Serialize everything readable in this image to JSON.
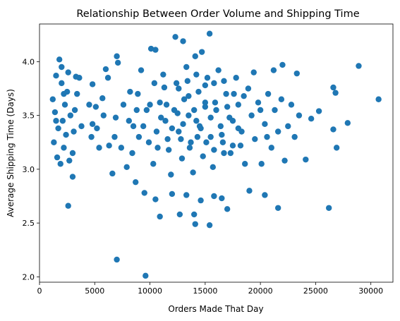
{
  "chart_data": {
    "type": "scatter",
    "title": "Relationship Between Order Volume and Shipping Time",
    "xlabel": "Orders Made That Day",
    "ylabel": "Average Shipping Time (Days)",
    "xlim": [
      0,
      32000
    ],
    "ylim": [
      1.95,
      4.35
    ],
    "x_ticks": [
      0,
      5000,
      10000,
      15000,
      20000,
      25000,
      30000
    ],
    "y_ticks": [
      2.0,
      2.5,
      3.0,
      3.5,
      4.0
    ],
    "grid": false,
    "legend": "none",
    "marker_color": "#1f77b4",
    "points": [
      [
        9600,
        2.01
      ],
      [
        7000,
        2.16
      ],
      [
        2600,
        2.66
      ],
      [
        21600,
        2.64
      ],
      [
        26200,
        2.64
      ],
      [
        10900,
        2.56
      ],
      [
        12700,
        2.58
      ],
      [
        14000,
        2.58
      ],
      [
        14100,
        2.49
      ],
      [
        15400,
        2.48
      ],
      [
        12000,
        2.77
      ],
      [
        13300,
        2.76
      ],
      [
        15800,
        2.75
      ],
      [
        16500,
        2.73
      ],
      [
        17000,
        2.63
      ],
      [
        9500,
        2.78
      ],
      [
        10500,
        2.72
      ],
      [
        14600,
        2.71
      ],
      [
        19000,
        2.8
      ],
      [
        20400,
        2.76
      ],
      [
        24100,
        3.09
      ],
      [
        26600,
        3.37
      ],
      [
        26900,
        3.2
      ],
      [
        27900,
        3.43
      ],
      [
        28900,
        3.96
      ],
      [
        30700,
        3.65
      ],
      [
        26600,
        3.76
      ],
      [
        26800,
        3.71
      ],
      [
        25300,
        3.54
      ],
      [
        24600,
        3.47
      ],
      [
        23300,
        3.89
      ],
      [
        22000,
        3.97
      ],
      [
        21200,
        3.92
      ],
      [
        12300,
        4.23
      ],
      [
        13000,
        4.19
      ],
      [
        15400,
        4.26
      ],
      [
        10100,
        4.12
      ],
      [
        10500,
        4.11
      ],
      [
        14700,
        4.09
      ],
      [
        14100,
        4.05
      ],
      [
        7000,
        4.05
      ],
      [
        7100,
        3.99
      ],
      [
        6000,
        3.93
      ],
      [
        1800,
        4.02
      ],
      [
        2000,
        3.95
      ],
      [
        1500,
        3.87
      ],
      [
        1200,
        3.65
      ],
      [
        1400,
        3.53
      ],
      [
        1300,
        3.25
      ],
      [
        1600,
        3.11
      ],
      [
        1900,
        3.05
      ],
      [
        2200,
        3.2
      ],
      [
        2400,
        3.32
      ],
      [
        2700,
        3.08
      ],
      [
        3000,
        2.93
      ],
      [
        3100,
        3.35
      ],
      [
        2500,
        3.72
      ],
      [
        3300,
        3.86
      ],
      [
        3600,
        3.85
      ],
      [
        3400,
        3.7
      ],
      [
        2000,
        3.8
      ],
      [
        2300,
        3.6
      ],
      [
        2100,
        3.45
      ],
      [
        2800,
        3.5
      ],
      [
        3200,
        3.55
      ],
      [
        4700,
        3.3
      ],
      [
        4800,
        3.42
      ],
      [
        5100,
        3.58
      ],
      [
        5400,
        3.2
      ],
      [
        6600,
        2.96
      ],
      [
        4800,
        3.79
      ],
      [
        5700,
        3.66
      ],
      [
        6200,
        3.85
      ],
      [
        6800,
        3.3
      ],
      [
        7400,
        3.2
      ],
      [
        7900,
        3.02
      ],
      [
        8400,
        3.15
      ],
      [
        8700,
        2.88
      ],
      [
        8100,
        3.45
      ],
      [
        8900,
        3.7
      ],
      [
        9200,
        3.92
      ],
      [
        9700,
        3.55
      ],
      [
        9900,
        3.25
      ],
      [
        10300,
        3.05
      ],
      [
        10600,
        3.35
      ],
      [
        10900,
        3.62
      ],
      [
        11200,
        3.88
      ],
      [
        11400,
        3.45
      ],
      [
        11700,
        3.18
      ],
      [
        11900,
        2.95
      ],
      [
        12200,
        3.55
      ],
      [
        12400,
        3.8
      ],
      [
        12600,
        3.35
      ],
      [
        12900,
        3.1
      ],
      [
        13100,
        3.65
      ],
      [
        13300,
        3.95
      ],
      [
        13500,
        3.5
      ],
      [
        13700,
        3.25
      ],
      [
        13900,
        2.97
      ],
      [
        14200,
        3.45
      ],
      [
        14400,
        3.72
      ],
      [
        14600,
        3.38
      ],
      [
        14800,
        3.12
      ],
      [
        15000,
        3.58
      ],
      [
        15200,
        3.85
      ],
      [
        15500,
        3.3
      ],
      [
        15700,
        3.02
      ],
      [
        15900,
        3.62
      ],
      [
        16200,
        3.92
      ],
      [
        16400,
        3.4
      ],
      [
        16700,
        3.15
      ],
      [
        16900,
        3.7
      ],
      [
        17200,
        3.48
      ],
      [
        17500,
        3.22
      ],
      [
        17800,
        3.85
      ],
      [
        18000,
        3.6
      ],
      [
        18300,
        3.35
      ],
      [
        18600,
        3.05
      ],
      [
        18900,
        3.75
      ],
      [
        19200,
        3.5
      ],
      [
        19500,
        3.28
      ],
      [
        19800,
        3.62
      ],
      [
        20100,
        3.05
      ],
      [
        20400,
        3.42
      ],
      [
        20700,
        3.7
      ],
      [
        21000,
        3.2
      ],
      [
        21300,
        3.55
      ],
      [
        21600,
        3.35
      ],
      [
        21900,
        3.65
      ],
      [
        22200,
        3.08
      ],
      [
        22500,
        3.4
      ],
      [
        22800,
        3.6
      ],
      [
        23100,
        3.3
      ],
      [
        23500,
        3.5
      ],
      [
        11000,
        3.48
      ],
      [
        11500,
        3.6
      ],
      [
        12000,
        3.38
      ],
      [
        12500,
        3.52
      ],
      [
        13000,
        3.42
      ],
      [
        13500,
        3.68
      ],
      [
        14000,
        3.55
      ],
      [
        14500,
        3.4
      ],
      [
        15000,
        3.62
      ],
      [
        15500,
        3.48
      ],
      [
        16000,
        3.55
      ],
      [
        16500,
        3.32
      ],
      [
        17000,
        3.58
      ],
      [
        17500,
        3.45
      ],
      [
        18000,
        3.38
      ],
      [
        10000,
        3.6
      ],
      [
        9400,
        3.4
      ],
      [
        8800,
        3.55
      ],
      [
        8200,
        3.72
      ],
      [
        7600,
        3.6
      ],
      [
        6900,
        3.48
      ],
      [
        6300,
        3.22
      ],
      [
        5800,
        3.5
      ],
      [
        5200,
        3.38
      ],
      [
        4500,
        3.6
      ],
      [
        3800,
        3.4
      ],
      [
        12800,
        3.28
      ],
      [
        13600,
        3.2
      ],
      [
        14300,
        3.3
      ],
      [
        15100,
        3.25
      ],
      [
        15800,
        3.18
      ],
      [
        11600,
        3.28
      ],
      [
        10700,
        3.2
      ],
      [
        16600,
        3.25
      ],
      [
        17300,
        3.15
      ],
      [
        18200,
        3.22
      ],
      [
        12600,
        3.75
      ],
      [
        13400,
        3.82
      ],
      [
        14200,
        3.88
      ],
      [
        15000,
        3.78
      ],
      [
        15800,
        3.8
      ],
      [
        11300,
        3.76
      ],
      [
        10400,
        3.8
      ],
      [
        16700,
        3.82
      ],
      [
        17600,
        3.7
      ],
      [
        18500,
        3.68
      ],
      [
        9000,
        3.3
      ],
      [
        8500,
        3.4
      ],
      [
        19400,
        3.9
      ],
      [
        20000,
        3.55
      ],
      [
        20600,
        3.3
      ],
      [
        1700,
        3.38
      ],
      [
        2600,
        3.9
      ],
      [
        3000,
        3.15
      ],
      [
        2200,
        3.7
      ],
      [
        1500,
        3.45
      ]
    ]
  }
}
